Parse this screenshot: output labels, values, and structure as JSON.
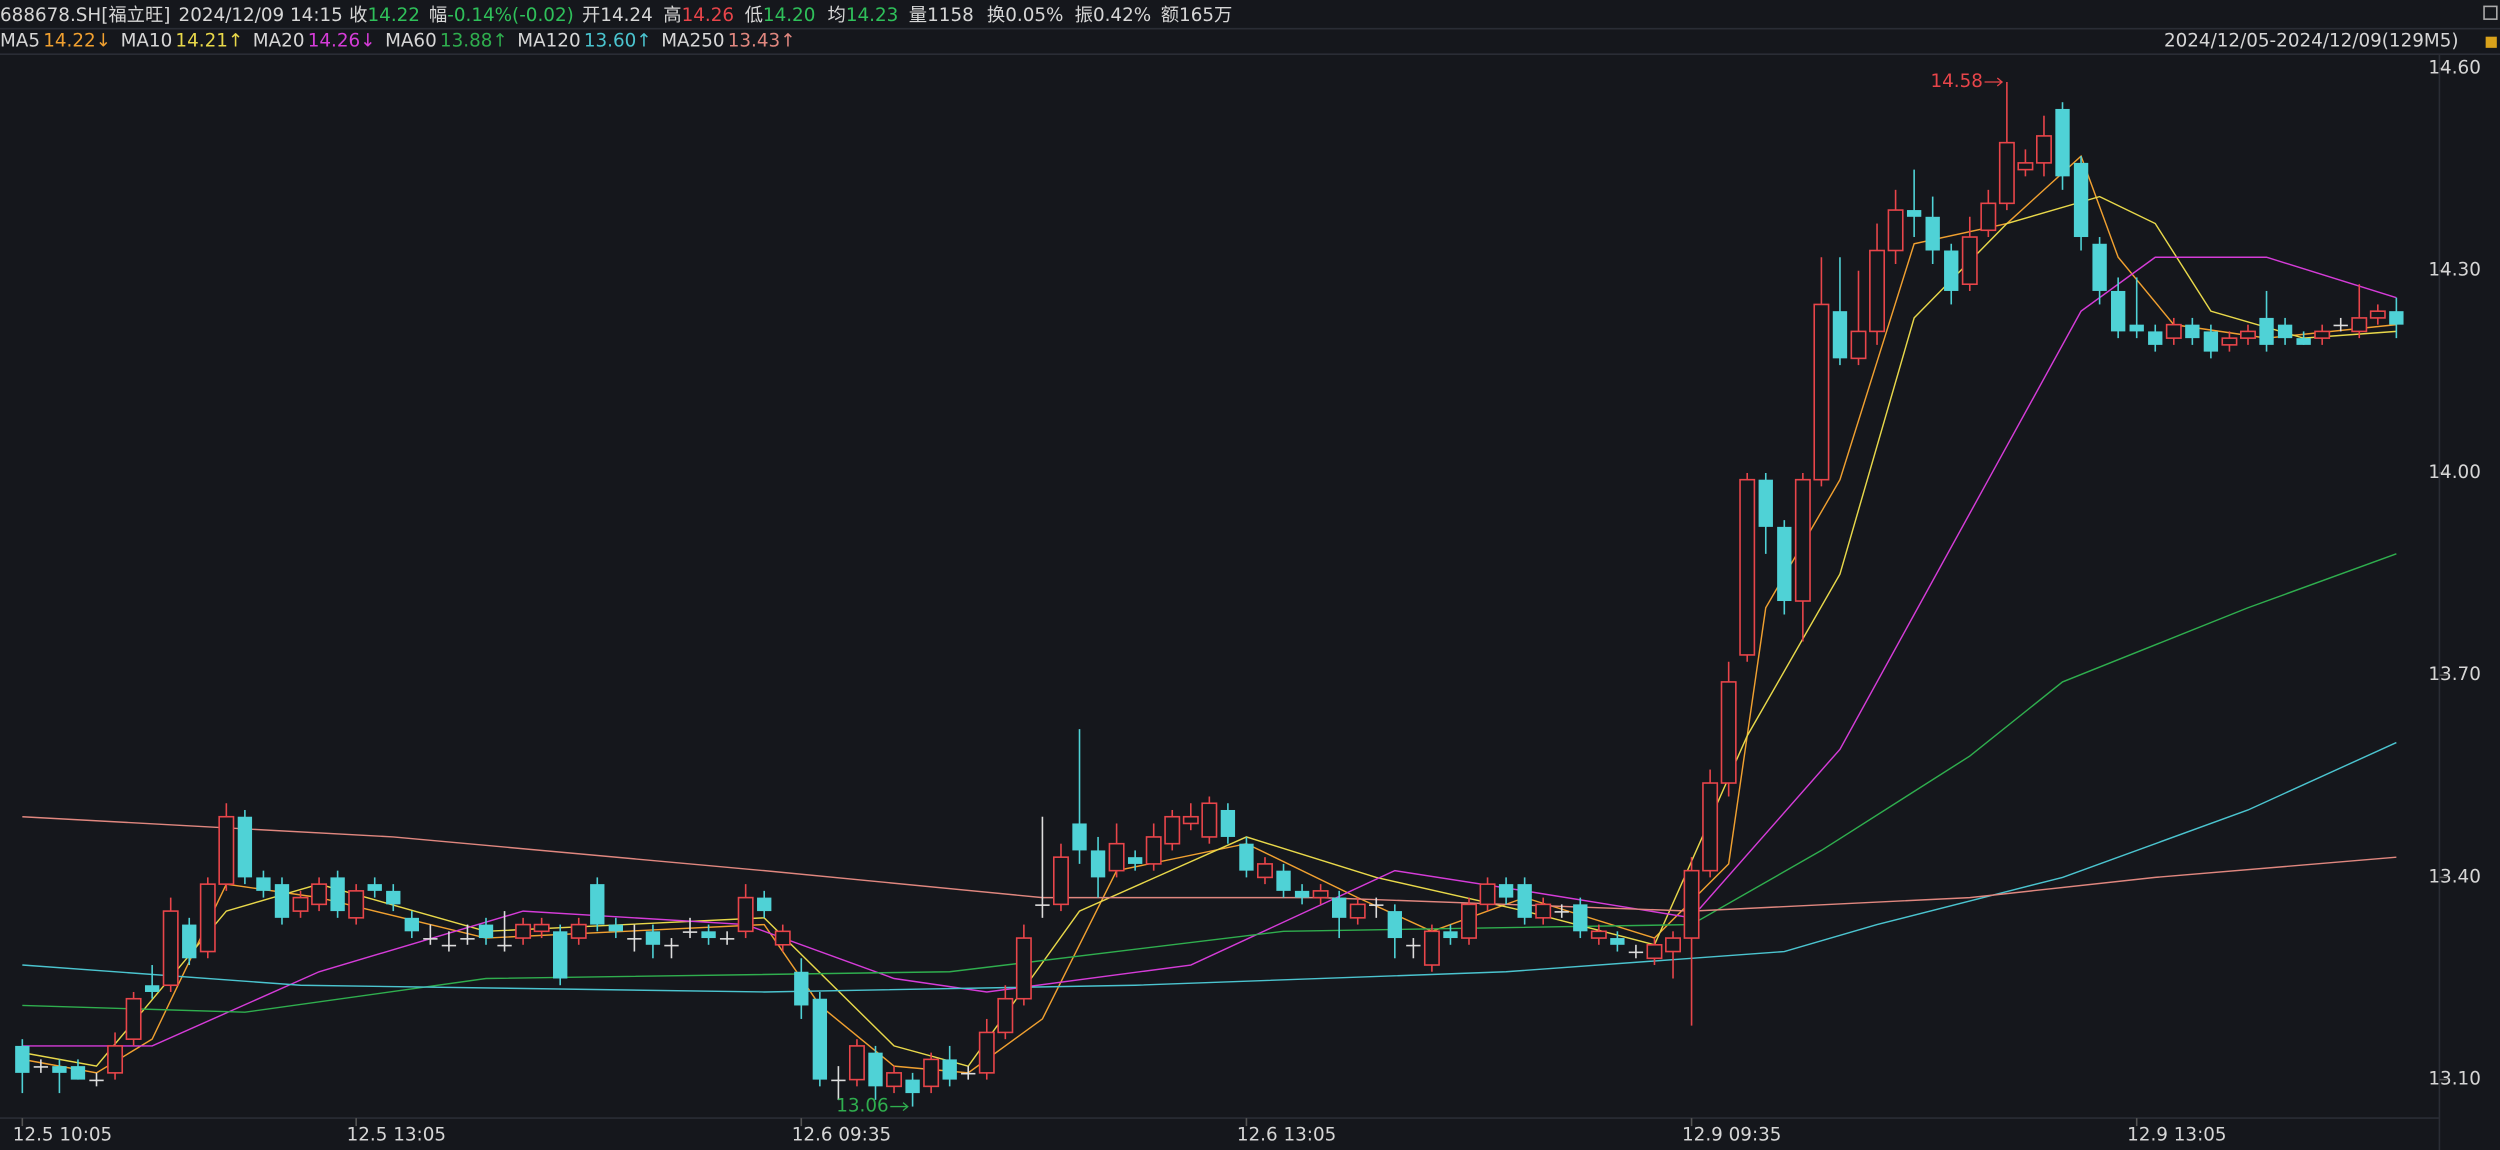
{
  "header": {
    "symbol": "688678.SH[福立旺]",
    "datetime": "2024/12/09 14:15",
    "fields": [
      {
        "label": "收",
        "value": "14.22"
      },
      {
        "label": "幅",
        "value": "-0.14%(-0.02)"
      },
      {
        "label": "开",
        "value": "14.24"
      },
      {
        "label": "高",
        "value": "14.26"
      },
      {
        "label": "低",
        "value": "14.20"
      },
      {
        "label": "均",
        "value": "14.23"
      },
      {
        "label": "量",
        "value": "1158"
      },
      {
        "label": "换",
        "value": "0.05%"
      },
      {
        "label": "振",
        "value": "0.42%"
      },
      {
        "label": "额",
        "value": "165万"
      }
    ],
    "range": "2024/12/05-2024/12/09(129M5)"
  },
  "chart_data": {
    "type": "candlestick",
    "up_color": "#e8454a",
    "down_color": "#4fd2d6",
    "flat_color": "#dddddd",
    "xlim": [
      0,
      128
    ],
    "ylim": [
      13.05,
      14.62
    ],
    "yticks": [
      {
        "value": 14.6,
        "label": "14.60"
      },
      {
        "value": 14.3,
        "label": "14.30"
      },
      {
        "value": 14,
        "label": "14.00"
      },
      {
        "value": 13.7,
        "label": "13.70"
      },
      {
        "value": 13.4,
        "label": "13.40"
      },
      {
        "value": 13.1,
        "label": "13.10"
      }
    ],
    "xticks": [
      {
        "value": 0,
        "label": "12.5 10:05"
      },
      {
        "value": 18,
        "label": "12.5 13:05"
      },
      {
        "value": 42,
        "label": "12.6 09:35"
      },
      {
        "value": 66,
        "label": "12.6 13:05"
      },
      {
        "value": 90,
        "label": "12.9 09:35"
      },
      {
        "value": 114,
        "label": "12.9 13:05"
      }
    ],
    "open": [
      13.15,
      13.12,
      13.12,
      13.12,
      13.1,
      13.11,
      13.16,
      13.24,
      13.24,
      13.33,
      13.29,
      13.39,
      13.49,
      13.4,
      13.39,
      13.35,
      13.36,
      13.4,
      13.34,
      13.39,
      13.38,
      13.34,
      13.31,
      13.3,
      13.31,
      13.33,
      13.3,
      13.31,
      13.32,
      13.32,
      13.31,
      13.39,
      13.33,
      13.31,
      13.32,
      13.3,
      13.32,
      13.32,
      13.31,
      13.32,
      13.37,
      13.3,
      13.26,
      13.22,
      13.1,
      13.1,
      13.14,
      13.09,
      13.1,
      13.09,
      13.13,
      13.11,
      13.11,
      13.17,
      13.22,
      13.36,
      13.36,
      13.48,
      13.44,
      13.41,
      13.43,
      13.42,
      13.45,
      13.48,
      13.46,
      13.5,
      13.45,
      13.4,
      13.41,
      13.38,
      13.37,
      13.37,
      13.34,
      13.36,
      13.35,
      13.3,
      13.27,
      13.32,
      13.31,
      13.36,
      13.39,
      13.39,
      13.34,
      13.35,
      13.36,
      13.31,
      13.31,
      13.29,
      13.28,
      13.29,
      13.31,
      13.41,
      13.54,
      13.73,
      13.99,
      13.92,
      13.81,
      13.99,
      14.24,
      14.17,
      14.21,
      14.33,
      14.39,
      14.38,
      14.33,
      14.28,
      14.36,
      14.4,
      14.45,
      14.46,
      14.54,
      14.46,
      14.34,
      14.27,
      14.22,
      14.21,
      14.2,
      14.22,
      14.21,
      14.19,
      14.2,
      14.23,
      14.22,
      14.2,
      14.2,
      14.22,
      14.21,
      14.23,
      14.24
    ],
    "high": [
      13.16,
      13.13,
      13.13,
      13.13,
      13.11,
      13.17,
      13.23,
      13.27,
      13.37,
      13.34,
      13.4,
      13.51,
      13.5,
      13.41,
      13.4,
      13.38,
      13.4,
      13.41,
      13.39,
      13.4,
      13.39,
      13.35,
      13.33,
      13.32,
      13.33,
      13.34,
      13.35,
      13.34,
      13.34,
      13.33,
      13.34,
      13.4,
      13.34,
      13.33,
      13.33,
      13.31,
      13.34,
      13.33,
      13.32,
      13.39,
      13.38,
      13.33,
      13.28,
      13.23,
      13.12,
      13.16,
      13.15,
      13.12,
      13.11,
      13.14,
      13.15,
      13.12,
      13.19,
      13.24,
      13.33,
      13.49,
      13.45,
      13.62,
      13.46,
      13.48,
      13.44,
      13.48,
      13.5,
      13.51,
      13.52,
      13.51,
      13.46,
      13.43,
      13.42,
      13.39,
      13.39,
      13.38,
      13.37,
      13.37,
      13.36,
      13.31,
      13.33,
      13.33,
      13.37,
      13.4,
      13.4,
      13.4,
      13.37,
      13.36,
      13.37,
      13.33,
      13.32,
      13.3,
      13.31,
      13.32,
      13.43,
      13.56,
      13.72,
      14.0,
      14.0,
      13.93,
      14.0,
      14.32,
      14.32,
      14.3,
      14.37,
      14.42,
      14.45,
      14.41,
      14.34,
      14.38,
      14.42,
      14.58,
      14.48,
      14.53,
      14.55,
      14.47,
      14.35,
      14.29,
      14.29,
      14.22,
      14.23,
      14.23,
      14.22,
      14.21,
      14.22,
      14.27,
      14.23,
      14.21,
      14.22,
      14.23,
      14.28,
      14.25,
      14.26
    ],
    "low": [
      13.08,
      13.11,
      13.08,
      13.1,
      13.09,
      13.1,
      13.15,
      13.22,
      13.23,
      13.27,
      13.28,
      13.38,
      13.39,
      13.37,
      13.33,
      13.34,
      13.35,
      13.34,
      13.33,
      13.37,
      13.35,
      13.31,
      13.3,
      13.29,
      13.3,
      13.3,
      13.29,
      13.3,
      13.31,
      13.24,
      13.3,
      13.32,
      13.31,
      13.29,
      13.28,
      13.28,
      13.31,
      13.3,
      13.3,
      13.31,
      13.34,
      13.29,
      13.19,
      13.09,
      13.07,
      13.09,
      13.07,
      13.08,
      13.06,
      13.08,
      13.09,
      13.1,
      13.1,
      13.16,
      13.21,
      13.34,
      13.35,
      13.42,
      13.37,
      13.4,
      13.41,
      13.41,
      13.44,
      13.47,
      13.45,
      13.45,
      13.4,
      13.39,
      13.37,
      13.36,
      13.36,
      13.31,
      13.33,
      13.34,
      13.28,
      13.28,
      13.26,
      13.3,
      13.3,
      13.35,
      13.36,
      13.33,
      13.33,
      13.34,
      13.31,
      13.3,
      13.29,
      13.28,
      13.27,
      13.25,
      13.18,
      13.4,
      13.52,
      13.72,
      13.88,
      13.79,
      13.75,
      13.98,
      14.16,
      14.16,
      14.19,
      14.31,
      14.35,
      14.31,
      14.25,
      14.27,
      14.35,
      14.39,
      14.44,
      14.44,
      14.42,
      14.33,
      14.25,
      14.2,
      14.2,
      14.18,
      14.19,
      14.19,
      14.17,
      14.18,
      14.19,
      14.18,
      14.19,
      14.19,
      14.19,
      14.21,
      14.2,
      14.22,
      14.2
    ],
    "close": [
      13.11,
      13.12,
      13.11,
      13.1,
      13.1,
      13.15,
      13.22,
      13.23,
      13.35,
      13.28,
      13.39,
      13.49,
      13.4,
      13.38,
      13.34,
      13.37,
      13.39,
      13.35,
      13.38,
      13.38,
      13.36,
      13.32,
      13.31,
      13.3,
      13.31,
      13.31,
      13.3,
      13.33,
      13.33,
      13.25,
      13.33,
      13.33,
      13.32,
      13.31,
      13.3,
      13.3,
      13.32,
      13.31,
      13.31,
      13.37,
      13.35,
      13.32,
      13.21,
      13.1,
      13.1,
      13.15,
      13.09,
      13.11,
      13.08,
      13.13,
      13.1,
      13.11,
      13.17,
      13.22,
      13.31,
      13.36,
      13.43,
      13.44,
      13.4,
      13.45,
      13.42,
      13.46,
      13.49,
      13.49,
      13.51,
      13.46,
      13.41,
      13.42,
      13.38,
      13.37,
      13.38,
      13.34,
      13.36,
      13.36,
      13.31,
      13.3,
      13.32,
      13.31,
      13.36,
      13.39,
      13.37,
      13.34,
      13.36,
      13.35,
      13.32,
      13.32,
      13.3,
      13.29,
      13.3,
      13.31,
      13.41,
      13.54,
      13.69,
      13.99,
      13.92,
      13.81,
      13.99,
      14.25,
      14.17,
      14.21,
      14.33,
      14.39,
      14.38,
      14.33,
      14.27,
      14.35,
      14.4,
      14.49,
      14.46,
      14.5,
      14.44,
      14.35,
      14.27,
      14.21,
      14.21,
      14.19,
      14.22,
      14.2,
      14.18,
      14.2,
      14.21,
      14.19,
      14.2,
      14.19,
      14.21,
      14.22,
      14.23,
      14.24,
      14.22
    ],
    "series": [
      {
        "name": "MA5",
        "color": "#f0a030",
        "last_label": "14.22↓",
        "x": [
          0,
          4,
          7,
          11,
          16,
          25,
          40,
          43,
          47,
          51,
          55,
          59,
          66,
          72,
          76,
          81,
          88,
          92,
          94,
          98,
          102,
          107,
          111,
          113,
          116,
          121,
          128
        ],
        "values": [
          13.13,
          13.11,
          13.16,
          13.39,
          13.37,
          13.31,
          13.33,
          13.21,
          13.12,
          13.11,
          13.19,
          13.41,
          13.45,
          13.37,
          13.32,
          13.37,
          13.31,
          13.42,
          13.8,
          13.99,
          14.34,
          14.37,
          14.47,
          14.32,
          14.22,
          14.2,
          14.22
        ]
      },
      {
        "name": "MA10",
        "color": "#e8d84a",
        "last_label": "14.21↑",
        "x": [
          0,
          4,
          11,
          16,
          25,
          40,
          47,
          51,
          57,
          66,
          73,
          81,
          88,
          93,
          98,
          102,
          107,
          112,
          115,
          118,
          123,
          128
        ],
        "values": [
          13.14,
          13.12,
          13.35,
          13.39,
          13.32,
          13.34,
          13.15,
          13.12,
          13.35,
          13.46,
          13.4,
          13.35,
          13.3,
          13.61,
          13.85,
          14.23,
          14.37,
          14.41,
          14.37,
          14.24,
          14.2,
          14.21
        ]
      },
      {
        "name": "MA20",
        "color": "#d53cd8",
        "last_label": "14.26↓",
        "x": [
          0,
          7,
          16,
          27,
          39,
          47,
          52,
          63,
          74,
          81,
          90,
          98,
          106,
          111,
          115,
          121,
          128
        ],
        "values": [
          13.15,
          13.15,
          13.26,
          13.35,
          13.33,
          13.25,
          13.23,
          13.27,
          13.41,
          13.38,
          13.34,
          13.59,
          13.99,
          14.24,
          14.32,
          14.32,
          14.26
        ]
      },
      {
        "name": "MA60",
        "color": "#2fae4e",
        "last_label": "13.88↑",
        "x": [
          0,
          12,
          25,
          50,
          68,
          90,
          97,
          105,
          110,
          120,
          128
        ],
        "values": [
          13.21,
          13.2,
          13.25,
          13.26,
          13.32,
          13.33,
          13.44,
          13.58,
          13.69,
          13.8,
          13.88
        ]
      },
      {
        "name": "MA120",
        "color": "#4bc4cf",
        "last_label": "13.60↑",
        "x": [
          0,
          15,
          40,
          60,
          80,
          90,
          95,
          100,
          110,
          120,
          128
        ],
        "values": [
          13.27,
          13.24,
          13.23,
          13.24,
          13.26,
          13.28,
          13.29,
          13.33,
          13.4,
          13.5,
          13.6
        ]
      },
      {
        "name": "MA250",
        "color": "#e0877f",
        "last_label": "13.43↑",
        "x": [
          0,
          20,
          40,
          55,
          70,
          90,
          105,
          115,
          128
        ],
        "values": [
          13.49,
          13.46,
          13.41,
          13.37,
          13.37,
          13.35,
          13.37,
          13.4,
          13.43
        ]
      }
    ],
    "max_label": {
      "x": 107,
      "value": 14.58,
      "color": "#e8454a"
    },
    "min_label": {
      "x": 48,
      "value": 13.06,
      "color": "#2fae4e"
    }
  }
}
